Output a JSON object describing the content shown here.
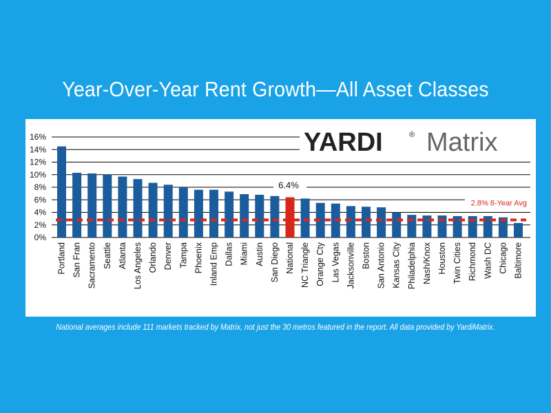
{
  "title": "Year-Over-Year Rent Growth—All Asset Classes",
  "footnote": "National averages include 111 markets tracked by Matrix, not just the 30 metros featured in the report. All data provided by YardiMatrix.",
  "logo": {
    "brand": "YARDI",
    "reg": "®",
    "product": "Matrix"
  },
  "colors": {
    "background": "#1aa2e6",
    "bar": "#1b5d9c",
    "highlight": "#d9261c",
    "avg_line": "#d9261c"
  },
  "chart_data": {
    "type": "bar",
    "title": "",
    "xlabel": "",
    "ylabel": "",
    "ylim": [
      0,
      16
    ],
    "y_ticks": [
      "0%",
      "2%",
      "4%",
      "6%",
      "8%",
      "10%",
      "12%",
      "14%",
      "16%"
    ],
    "grid": true,
    "categories": [
      "Portland",
      "San Fran",
      "Sacramento",
      "Seattle",
      "Atlanta",
      "Los Angeles",
      "Orlando",
      "Denver",
      "Tampa",
      "Phoenix",
      "Inland Emp",
      "Dallas",
      "Miami",
      "Austin",
      "San Diego",
      "National",
      "NC Triangle",
      "Orange Cty",
      "Las Vegas",
      "Jacksonville",
      "Boston",
      "San Antonio",
      "Kansas City",
      "Philadelphia",
      "Nash/Knox",
      "Houston",
      "Twin Cities",
      "Richmond",
      "Wash DC",
      "Chicago",
      "Baltimore"
    ],
    "values": [
      14.5,
      10.3,
      10.2,
      10.0,
      9.7,
      9.3,
      8.7,
      8.4,
      8.0,
      7.6,
      7.6,
      7.3,
      6.9,
      6.8,
      6.6,
      6.4,
      6.2,
      5.5,
      5.4,
      5.0,
      4.9,
      4.8,
      4.0,
      3.6,
      3.5,
      3.5,
      3.4,
      3.4,
      3.4,
      3.2,
      2.3
    ],
    "highlight_category": "National",
    "data_labels": [
      {
        "category": "National",
        "text": "6.4%"
      }
    ],
    "reference_line": {
      "value": 2.8,
      "label": "2.8% 8-Year Avg",
      "style": "dashed"
    }
  }
}
